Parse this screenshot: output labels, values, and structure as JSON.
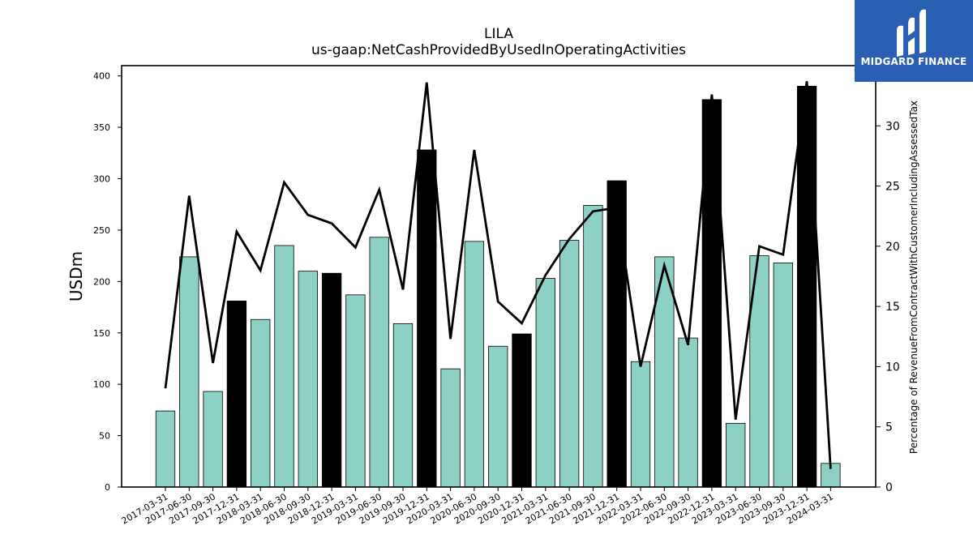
{
  "chart_data": {
    "type": "bar",
    "title": "LILA",
    "subtitle": "us-gaap:NetCashProvidedByUsedInOperatingActivities",
    "ylabel": "USDm",
    "y2label": "Percentage of RevenueFromContractWithCustomerIncludingAssessedTax",
    "ylim": [
      0,
      410
    ],
    "y2lim": [
      0,
      35
    ],
    "yticks": [
      0,
      50,
      100,
      150,
      200,
      250,
      300,
      350,
      400
    ],
    "y2ticks": [
      0,
      5,
      10,
      15,
      20,
      25,
      30
    ],
    "categories": [
      "2017-03-31",
      "2017-06-30",
      "2017-09-30",
      "2017-12-31",
      "2018-03-31",
      "2018-06-30",
      "2018-09-30",
      "2018-12-31",
      "2019-03-31",
      "2019-06-30",
      "2019-09-30",
      "2019-12-31",
      "2020-03-31",
      "2020-06-30",
      "2020-09-30",
      "2020-12-31",
      "2021-03-31",
      "2021-06-30",
      "2021-09-30",
      "2021-12-31",
      "2022-03-31",
      "2022-06-30",
      "2022-09-30",
      "2022-12-31",
      "2023-03-31",
      "2023-06-30",
      "2023-09-30",
      "2023-12-31",
      "2024-03-31"
    ],
    "series": [
      {
        "kind": "bar",
        "values": [
          74,
          224,
          93,
          181,
          163,
          235,
          210,
          208,
          187,
          243,
          159,
          328,
          115,
          239,
          137,
          149,
          203,
          240,
          274,
          298,
          122,
          224,
          145,
          377,
          62,
          225,
          218,
          390,
          23
        ],
        "highlight": [
          false,
          false,
          false,
          true,
          false,
          false,
          false,
          true,
          false,
          false,
          false,
          true,
          false,
          false,
          false,
          true,
          false,
          false,
          false,
          true,
          false,
          false,
          false,
          true,
          false,
          false,
          false,
          true,
          false
        ],
        "color": "#8dd1c5",
        "highlight_color": "#000000"
      },
      {
        "kind": "line",
        "axis": "right",
        "values": [
          8.2,
          24.2,
          10.3,
          21.2,
          18.0,
          25.3,
          22.6,
          21.9,
          19.9,
          24.7,
          16.4,
          33.6,
          12.3,
          28.0,
          15.4,
          13.6,
          17.6,
          20.6,
          22.9,
          23.2,
          10.0,
          18.4,
          11.8,
          32.6,
          5.6,
          20.0,
          19.3,
          33.7,
          1.5
        ],
        "color": "#000000"
      }
    ],
    "grid": false,
    "legend": "none"
  },
  "logo": {
    "text": "MIDGARD FINANCE",
    "icon": "midgard-logo-icon",
    "color": "#2b5fb4"
  }
}
